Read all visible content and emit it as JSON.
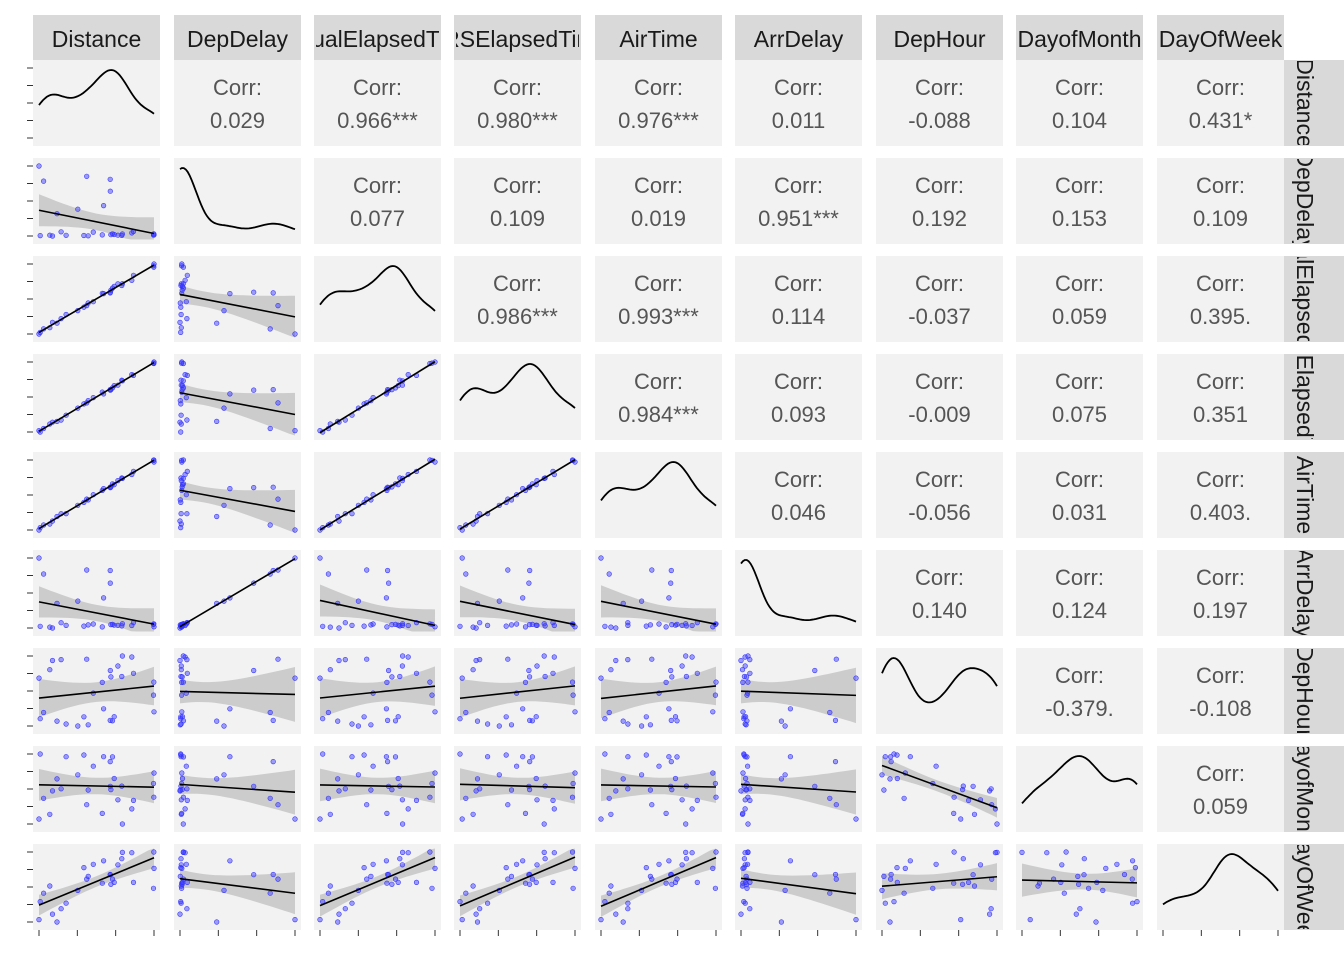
{
  "chart_data": {
    "type": "scatter-matrix",
    "variables": [
      "Distance",
      "DepDelay",
      "ActualElapsedTime",
      "CRSElapsedTime",
      "AirTime",
      "ArrDelay",
      "DepHour",
      "DayofMonth",
      "DayOfWeek"
    ],
    "correlation_label": "Corr:",
    "correlations": [
      [
        "",
        "0.029",
        "0.966***",
        "0.980***",
        "0.976***",
        "0.011",
        "-0.088",
        "0.104",
        "0.431*"
      ],
      [
        "",
        "",
        "0.077",
        "0.109",
        "0.019",
        "0.951***",
        "0.192",
        "0.153",
        "0.109"
      ],
      [
        "",
        "",
        "",
        "0.986***",
        "0.993***",
        "0.114",
        "-0.037",
        "0.059",
        "0.395."
      ],
      [
        "",
        "",
        "",
        "",
        "0.984***",
        "0.093",
        "-0.009",
        "0.075",
        "0.351"
      ],
      [
        "",
        "",
        "",
        "",
        "",
        "0.046",
        "-0.056",
        "0.031",
        "0.403."
      ],
      [
        "",
        "",
        "",
        "",
        "",
        "",
        "0.140",
        "0.124",
        "0.197"
      ],
      [
        "",
        "",
        "",
        "",
        "",
        "",
        "",
        "-0.379.",
        "-0.108"
      ],
      [
        "",
        "",
        "",
        "",
        "",
        "",
        "",
        "",
        "0.059"
      ],
      [
        "",
        "",
        "",
        "",
        "",
        "",
        "",
        "",
        ""
      ]
    ],
    "lower_panels": "scatter with linear fit and confidence band",
    "diagonal_panels": "density",
    "point_color": "#3333ff",
    "band_color": "#c8c8c8",
    "panel_background": "#f2f2f2",
    "strip_background": "#d9d9d9",
    "text_color": "#555555"
  }
}
